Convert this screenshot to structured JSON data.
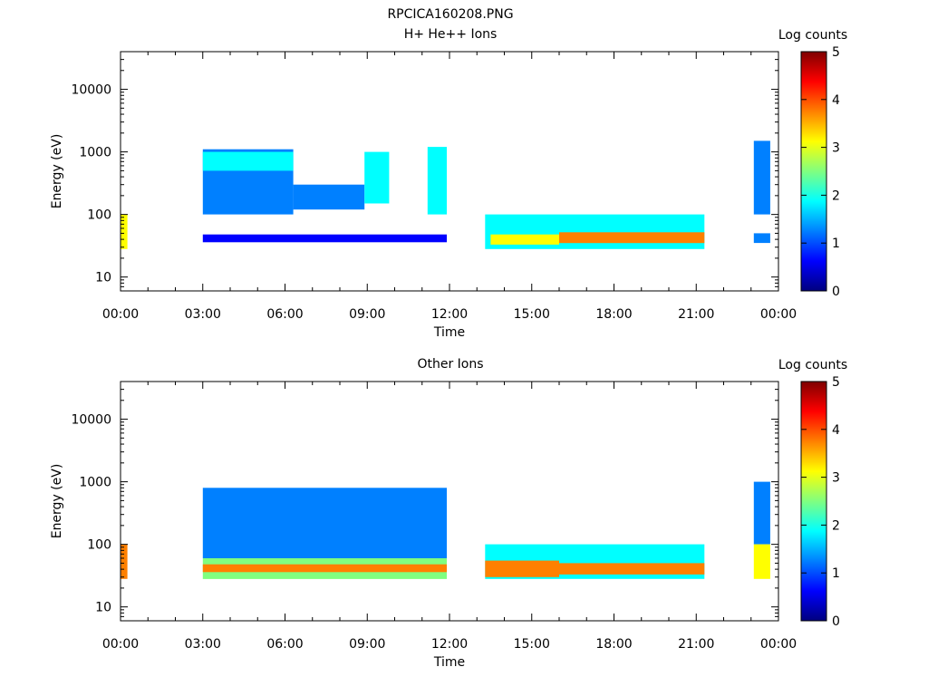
{
  "title": "RPCICA160208.PNG",
  "colorbar_scale": [
    "#00007f",
    "#0000ff",
    "#0080ff",
    "#00ffff",
    "#80ff80",
    "#ffff00",
    "#ff8000",
    "#ff0000",
    "#7f0000"
  ],
  "chart_data": [
    {
      "type": "heatmap",
      "title": "H+ He++ Ions",
      "xlabel": "Time",
      "ylabel": "Energy (eV)",
      "x_ticks": [
        "00:00",
        "03:00",
        "06:00",
        "09:00",
        "12:00",
        "15:00",
        "18:00",
        "21:00",
        "00:00"
      ],
      "y_ticks": [
        "10",
        "100",
        "1000",
        "10000"
      ],
      "y_scale": "log",
      "ylim": [
        6,
        40000
      ],
      "xlim_hours": [
        0,
        24
      ],
      "colorbar": {
        "label": "Log counts",
        "ticks": [
          "0",
          "1",
          "2",
          "3",
          "4",
          "5"
        ],
        "range": [
          0,
          5
        ]
      },
      "blocks": [
        {
          "t0": 0.0,
          "t1": 0.25,
          "emin": 28,
          "emax": 100,
          "level": 3.4
        },
        {
          "t0": 3.0,
          "t1": 6.3,
          "emin": 100,
          "emax": 1100,
          "level": 1.3
        },
        {
          "t0": 3.0,
          "t1": 6.3,
          "emin": 500,
          "emax": 1000,
          "level": 2.0
        },
        {
          "t0": 6.3,
          "t1": 8.9,
          "emin": 120,
          "emax": 300,
          "level": 1.0
        },
        {
          "t0": 8.9,
          "t1": 9.8,
          "emin": 150,
          "emax": 1000,
          "level": 1.6
        },
        {
          "t0": 11.2,
          "t1": 11.9,
          "emin": 100,
          "emax": 1200,
          "level": 1.6
        },
        {
          "t0": 3.0,
          "t1": 11.9,
          "emin": 36,
          "emax": 48,
          "level": 0.8
        },
        {
          "t0": 13.3,
          "t1": 21.3,
          "emin": 28,
          "emax": 100,
          "level": 1.6
        },
        {
          "t0": 13.5,
          "t1": 16.0,
          "emin": 33,
          "emax": 48,
          "level": 3.0
        },
        {
          "t0": 16.0,
          "t1": 21.3,
          "emin": 35,
          "emax": 52,
          "level": 3.6
        },
        {
          "t0": 23.1,
          "t1": 23.7,
          "emin": 100,
          "emax": 1500,
          "level": 1.3
        },
        {
          "t0": 23.1,
          "t1": 23.7,
          "emin": 35,
          "emax": 50,
          "level": 1.0
        }
      ]
    },
    {
      "type": "heatmap",
      "title": "Other Ions",
      "xlabel": "Time",
      "ylabel": "Energy (eV)",
      "x_ticks": [
        "00:00",
        "03:00",
        "06:00",
        "09:00",
        "12:00",
        "15:00",
        "18:00",
        "21:00",
        "00:00"
      ],
      "y_ticks": [
        "10",
        "100",
        "1000",
        "10000"
      ],
      "y_scale": "log",
      "ylim": [
        6,
        40000
      ],
      "xlim_hours": [
        0,
        24
      ],
      "colorbar": {
        "label": "Log counts",
        "ticks": [
          "0",
          "1",
          "2",
          "3",
          "4",
          "5"
        ],
        "range": [
          0,
          5
        ]
      },
      "blocks": [
        {
          "t0": 0.0,
          "t1": 0.25,
          "emin": 28,
          "emax": 100,
          "level": 3.6
        },
        {
          "t0": 3.0,
          "t1": 11.9,
          "emin": 60,
          "emax": 800,
          "level": 1.3
        },
        {
          "t0": 3.0,
          "t1": 11.9,
          "emin": 28,
          "emax": 60,
          "level": 2.8
        },
        {
          "t0": 3.0,
          "t1": 11.9,
          "emin": 36,
          "emax": 48,
          "level": 3.5
        },
        {
          "t0": 13.3,
          "t1": 21.3,
          "emin": 28,
          "emax": 100,
          "level": 1.7
        },
        {
          "t0": 13.3,
          "t1": 16.0,
          "emin": 30,
          "emax": 55,
          "level": 3.6
        },
        {
          "t0": 16.0,
          "t1": 21.3,
          "emin": 33,
          "emax": 50,
          "level": 4.0
        },
        {
          "t0": 23.1,
          "t1": 23.7,
          "emin": 100,
          "emax": 1000,
          "level": 1.5
        },
        {
          "t0": 23.1,
          "t1": 23.7,
          "emin": 28,
          "emax": 100,
          "level": 3.4
        }
      ]
    }
  ]
}
